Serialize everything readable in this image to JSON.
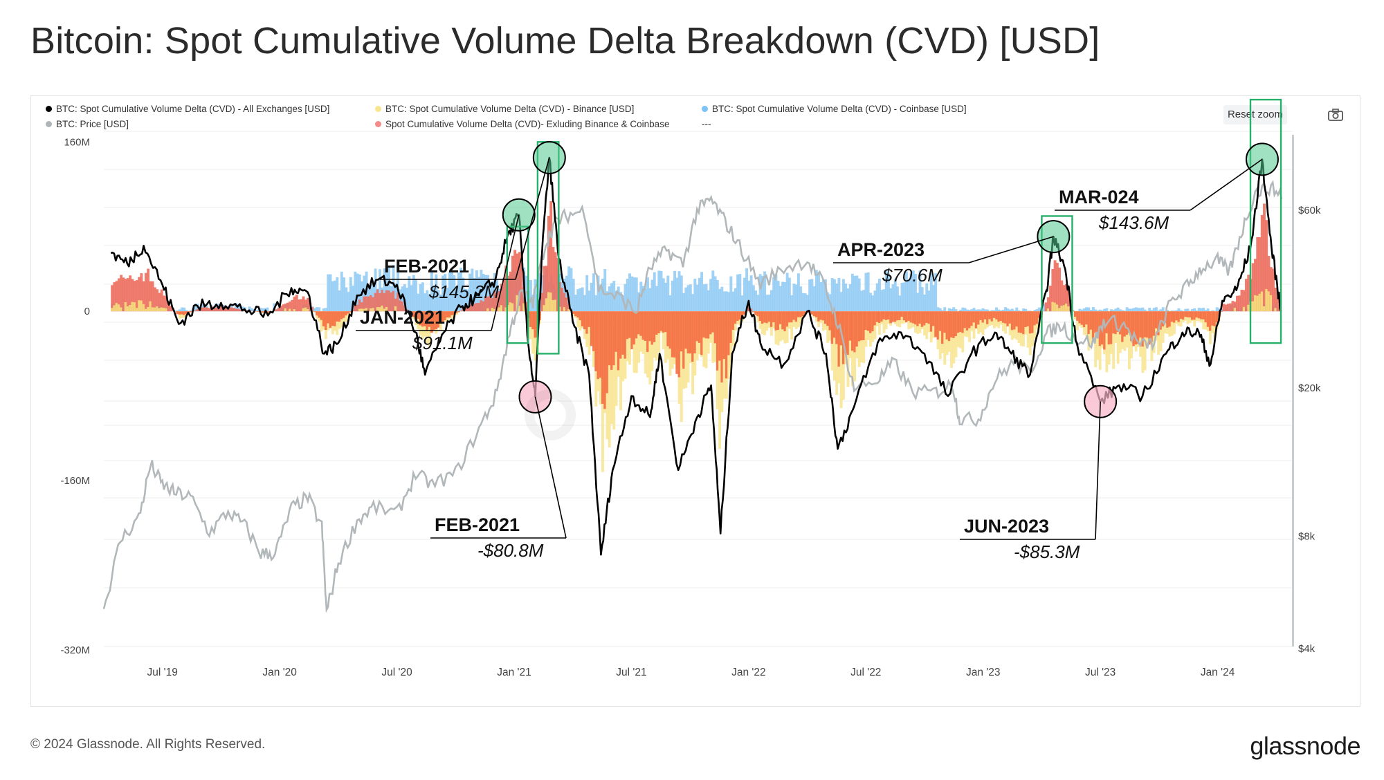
{
  "title": "Bitcoin: Spot Cumulative Volume Delta Breakdown (CVD) [USD]",
  "legend": [
    {
      "label": "BTC: Spot Cumulative Volume Delta (CVD) - All Exchanges [USD]",
      "color": "#000000"
    },
    {
      "label": "BTC: Spot Cumulative Volume Delta (CVD) - Binance [USD]",
      "color": "#f7e58f"
    },
    {
      "label": "BTC: Spot Cumulative Volume Delta (CVD) - Coinbase [USD]",
      "color": "#7ec3f5"
    },
    {
      "label": "BTC: Price [USD]",
      "color": "#b0b6b8"
    },
    {
      "label": "Spot Cumulative Volume Delta (CVD)- Exluding Binance & Coinbase",
      "color": "#f58a8a"
    },
    {
      "label": "---",
      "color": ""
    }
  ],
  "reset_zoom_label": "Reset zoom",
  "camera_icon": "camera-icon",
  "footer": "© 2024 Glassnode. All Rights Reserved.",
  "brand": "glassnode",
  "chart_data": {
    "type": "line",
    "y_left_ticks": [
      "160M",
      "0",
      "-160M",
      "-320M"
    ],
    "y_left_values": [
      160,
      0,
      -160,
      -320
    ],
    "y_right_ticks": [
      "$60k",
      "$20k",
      "$8k",
      "$4k"
    ],
    "y_right_values": [
      60000,
      20000,
      8000,
      4000
    ],
    "y_right_scale": "log",
    "x_ticks": [
      "Jul '19",
      "Jan '20",
      "Jul '20",
      "Jan '21",
      "Jul '21",
      "Jan '22",
      "Jul '22",
      "Jan '23",
      "Jul '23",
      "Jan '24"
    ],
    "x_tick_values": [
      2019.5,
      2020.0,
      2020.5,
      2021.0,
      2021.5,
      2022.0,
      2022.5,
      2023.0,
      2023.5,
      2024.0
    ],
    "ylim": [
      -320,
      170
    ],
    "grid": true,
    "cvd_all_exchanges_musd": [
      [
        2019.28,
        55
      ],
      [
        2019.35,
        45
      ],
      [
        2019.42,
        62
      ],
      [
        2019.5,
        25
      ],
      [
        2019.57,
        -12
      ],
      [
        2019.65,
        5
      ],
      [
        2019.75,
        8
      ],
      [
        2019.85,
        2
      ],
      [
        2019.95,
        -4
      ],
      [
        2020.05,
        22
      ],
      [
        2020.12,
        18
      ],
      [
        2020.19,
        -40
      ],
      [
        2020.25,
        -30
      ],
      [
        2020.33,
        15
      ],
      [
        2020.42,
        30
      ],
      [
        2020.5,
        25
      ],
      [
        2020.58,
        -20
      ],
      [
        2020.62,
        -60
      ],
      [
        2020.7,
        -20
      ],
      [
        2020.78,
        5
      ],
      [
        2020.85,
        15
      ],
      [
        2020.92,
        30
      ],
      [
        2020.97,
        70
      ],
      [
        2021.02,
        91.1
      ],
      [
        2021.06,
        -30
      ],
      [
        2021.09,
        -80.8
      ],
      [
        2021.12,
        60
      ],
      [
        2021.15,
        145.2
      ],
      [
        2021.19,
        50
      ],
      [
        2021.25,
        -10
      ],
      [
        2021.32,
        -60
      ],
      [
        2021.37,
        -230
      ],
      [
        2021.42,
        -150
      ],
      [
        2021.5,
        -80
      ],
      [
        2021.58,
        -100
      ],
      [
        2021.62,
        -40
      ],
      [
        2021.7,
        -150
      ],
      [
        2021.78,
        -100
      ],
      [
        2021.84,
        -70
      ],
      [
        2021.88,
        -210
      ],
      [
        2021.93,
        -40
      ],
      [
        2022.0,
        10
      ],
      [
        2022.05,
        -30
      ],
      [
        2022.15,
        -50
      ],
      [
        2022.25,
        0
      ],
      [
        2022.33,
        -40
      ],
      [
        2022.38,
        -130
      ],
      [
        2022.45,
        -90
      ],
      [
        2022.55,
        -30
      ],
      [
        2022.65,
        -20
      ],
      [
        2022.75,
        -40
      ],
      [
        2022.85,
        -80
      ],
      [
        2022.95,
        -40
      ],
      [
        2023.05,
        -20
      ],
      [
        2023.12,
        -40
      ],
      [
        2023.2,
        -60
      ],
      [
        2023.27,
        20
      ],
      [
        2023.3,
        70.6
      ],
      [
        2023.35,
        40
      ],
      [
        2023.4,
        -30
      ],
      [
        2023.5,
        -85.3
      ],
      [
        2023.58,
        -70
      ],
      [
        2023.68,
        -80
      ],
      [
        2023.78,
        -40
      ],
      [
        2023.85,
        -20
      ],
      [
        2023.92,
        -20
      ],
      [
        2023.97,
        -50
      ],
      [
        2024.02,
        10
      ],
      [
        2024.08,
        20
      ],
      [
        2024.14,
        60
      ],
      [
        2024.19,
        143.6
      ],
      [
        2024.23,
        60
      ],
      [
        2024.27,
        0
      ]
    ],
    "annotations": [
      {
        "label": "JAN-2021",
        "value": "$91.1M",
        "x": 2021.02,
        "y": 91.1,
        "kind": "peak"
      },
      {
        "label": "FEB-2021",
        "value": "$145.2M",
        "x": 2021.15,
        "y": 145.2,
        "kind": "peak"
      },
      {
        "label": "FEB-2021",
        "value": "-$80.8M",
        "x": 2021.09,
        "y": -80.8,
        "kind": "trough"
      },
      {
        "label": "APR-2023",
        "value": "$70.6M",
        "x": 2023.3,
        "y": 70.6,
        "kind": "peak"
      },
      {
        "label": "JUN-2023",
        "value": "-$85.3M",
        "x": 2023.5,
        "y": -85.3,
        "kind": "trough"
      },
      {
        "label": "MAR-024",
        "value": "$143.6M",
        "x": 2024.19,
        "y": 143.6,
        "kind": "peak"
      }
    ]
  }
}
